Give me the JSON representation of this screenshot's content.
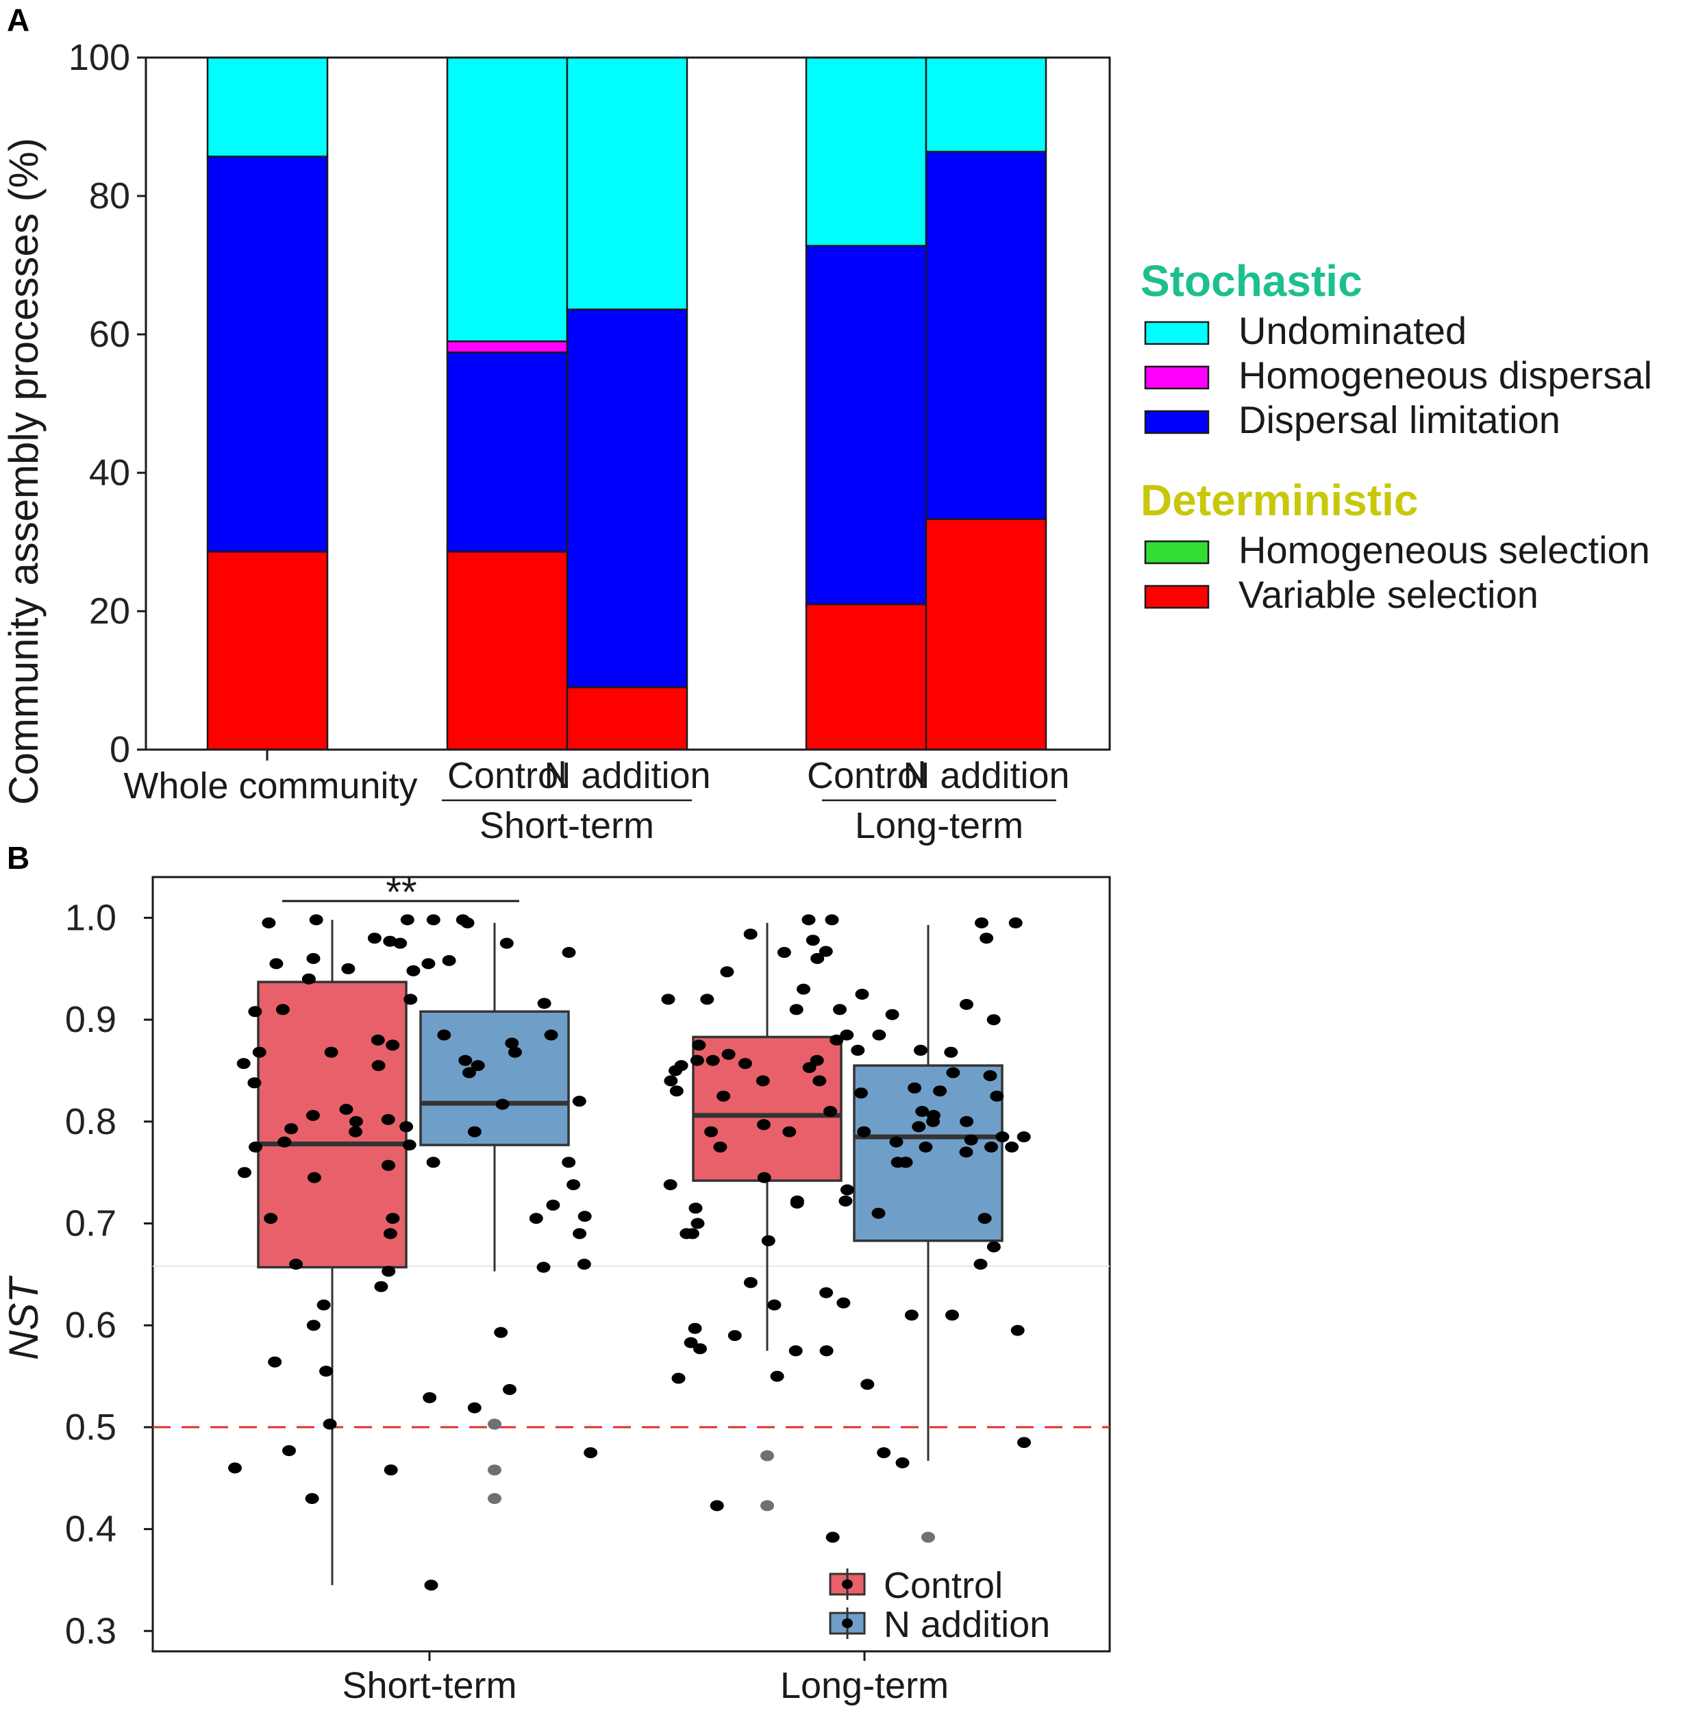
{
  "chart_data": [
    {
      "panel": "A",
      "type": "bar",
      "stacked": true,
      "ylabel": "Community assembly processes (%)",
      "ylim": [
        0,
        100
      ],
      "yticks": [
        "0",
        "20",
        "40",
        "60",
        "80",
        "100"
      ],
      "categories": [
        "Whole community",
        "Control",
        "N addition",
        "Control",
        "N addition"
      ],
      "groups": [
        {
          "label": "Short-term",
          "members": [
            1,
            2
          ]
        },
        {
          "label": "Long-term",
          "members": [
            3,
            4
          ]
        }
      ],
      "series": [
        {
          "name": "Variable selection",
          "color": "#ff0000",
          "values": [
            28.6,
            28.6,
            9.0,
            21.0,
            33.3
          ]
        },
        {
          "name": "Homogeneous selection",
          "color": "#33dd33",
          "values": [
            0,
            0,
            0,
            0,
            0
          ]
        },
        {
          "name": "Dispersal limitation",
          "color": "#0000ff",
          "values": [
            57.1,
            28.8,
            54.6,
            51.8,
            53.1
          ]
        },
        {
          "name": "Homogeneous dispersal",
          "color": "#ff00ff",
          "values": [
            0,
            1.6,
            0,
            0,
            0
          ]
        },
        {
          "name": "Undominated",
          "color": "#00ffff",
          "values": [
            14.3,
            41.0,
            36.4,
            27.2,
            13.6
          ]
        }
      ],
      "legend": {
        "groups": [
          {
            "title": "Stochastic",
            "color": "#1dbf8f",
            "items": [
              "Undominated",
              "Homogeneous dispersal",
              "Dispersal limitation"
            ]
          },
          {
            "title": "Deterministic",
            "color": "#c8c80a",
            "items": [
              "Homogeneous selection",
              "Variable selection"
            ]
          }
        ],
        "placement": "right"
      }
    },
    {
      "panel": "B",
      "type": "box",
      "ylabel": "NST",
      "ylim": [
        0.28,
        1.04
      ],
      "yticks": [
        "0.3",
        "0.4",
        "0.5",
        "0.6",
        "0.7",
        "0.8",
        "0.9",
        "1.0"
      ],
      "categories": [
        "Short-term",
        "Long-term"
      ],
      "reference_line": 0.5,
      "significance": "**",
      "legend": {
        "items": [
          "Control",
          "N addition"
        ],
        "placement": "bottom-right"
      },
      "series": [
        {
          "name": "Control",
          "color": "#e8616a",
          "boxes": [
            {
              "category": "Short-term",
              "q1": 0.657,
              "median": 0.778,
              "q3": 0.937,
              "whisker_low": 0.345,
              "whisker_high": 0.998
            },
            {
              "category": "Long-term",
              "q1": 0.742,
              "median": 0.806,
              "q3": 0.883,
              "whisker_low": 0.575,
              "whisker_high": 0.995,
              "outliers": [
                0.472,
                0.423
              ]
            }
          ]
        },
        {
          "name": "N addition",
          "color": "#6f9fc9",
          "boxes": [
            {
              "category": "Short-term",
              "q1": 0.777,
              "median": 0.818,
              "q3": 0.908,
              "whisker_low": 0.653,
              "whisker_high": 0.995,
              "outliers": [
                0.503,
                0.458,
                0.43
              ]
            },
            {
              "category": "Long-term",
              "q1": 0.683,
              "median": 0.785,
              "q3": 0.855,
              "whisker_low": 0.467,
              "whisker_high": 0.993,
              "outliers": [
                0.392
              ]
            }
          ]
        }
      ],
      "points": [
        {
          "category": "Short-term",
          "values": [
            0.998,
            0.998,
            0.995,
            0.998,
            0.977,
            0.948,
            0.908,
            0.885,
            0.885,
            0.88,
            0.868,
            0.868,
            0.848,
            0.838,
            0.92,
            0.806,
            0.79,
            0.78,
            0.76,
            0.795,
            0.793,
            0.75,
            0.738,
            0.707,
            0.705,
            0.69,
            0.69,
            0.66,
            0.638,
            0.529,
            0.519,
            0.503,
            0.477,
            0.475,
            0.458,
            0.43,
            0.955,
            0.95,
            0.91,
            0.877,
            0.8,
            0.79,
            0.775,
            0.76,
            0.745,
            0.718,
            0.975,
            0.96,
            0.958,
            0.98,
            0.975,
            0.995,
            0.955,
            0.94,
            0.875,
            0.868,
            0.857,
            0.855,
            0.855,
            0.86,
            0.82,
            0.812,
            0.802,
            0.777,
            0.757,
            0.705,
            0.705,
            0.653,
            0.62,
            0.6,
            0.593,
            0.564,
            0.555,
            0.537,
            0.657,
            0.66,
            0.966,
            0.916,
            0.817,
            0.998,
            0.345,
            0.46
          ]
        },
        {
          "category": "Long-term",
          "values": [
            0.966,
            0.91,
            0.857,
            0.853,
            0.833,
            0.8,
            0.797,
            0.775,
            0.738,
            0.722,
            0.71,
            0.575,
            0.577,
            0.485,
            0.998,
            0.995,
            0.885,
            0.88,
            0.86,
            0.848,
            0.845,
            0.84,
            0.83,
            0.825,
            0.81,
            0.795,
            0.76,
            0.66,
            0.984,
            0.915,
            0.866,
            0.855,
            0.86,
            0.85,
            0.828,
            0.8,
            0.782,
            0.775,
            0.722,
            0.69,
            0.683,
            0.622,
            0.583,
            0.575,
            0.642,
            0.62,
            0.61,
            0.423,
            0.947,
            0.92,
            0.905,
            0.875,
            0.978,
            0.92,
            0.91,
            0.86,
            0.84,
            0.83,
            0.81,
            0.806,
            0.79,
            0.785,
            0.775,
            0.76,
            0.745,
            0.72,
            0.715,
            0.705,
            0.7,
            0.69,
            0.59,
            0.55,
            0.548,
            0.475,
            0.967,
            0.93,
            0.925,
            0.9,
            0.87,
            0.84,
            0.79,
            0.775,
            0.76,
            0.733,
            0.677,
            0.61,
            0.392,
            0.995,
            0.98,
            0.96,
            0.885,
            0.87,
            0.868,
            0.825,
            0.79,
            0.785,
            0.78,
            0.77,
            0.632,
            0.597,
            0.595,
            0.542,
            0.465,
            0.998
          ]
        }
      ]
    }
  ],
  "panel_a_label": "A",
  "panel_b_label": "B"
}
